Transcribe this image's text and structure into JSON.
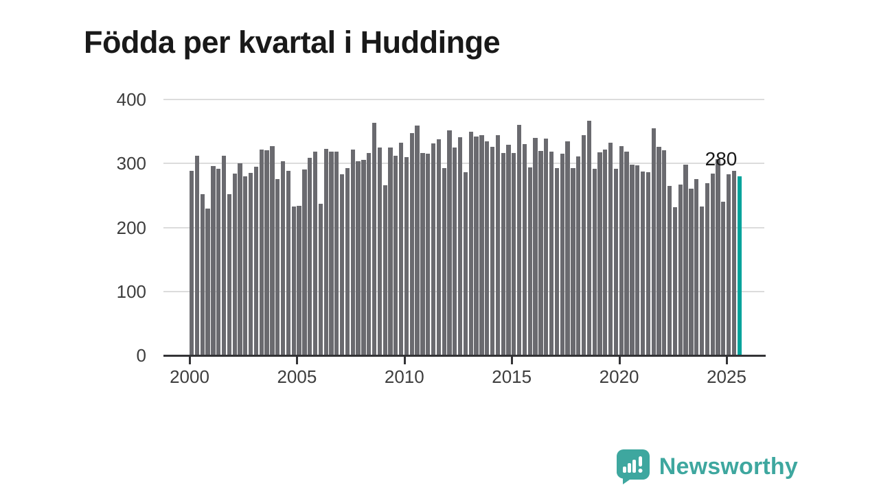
{
  "title": "Födda per kvartal i Huddinge",
  "chart_data": {
    "type": "bar",
    "title": "Födda per kvartal i Huddinge",
    "x_unit": "quarter",
    "start_quarter": "2000 Q1",
    "end_quarter": "2025 Q3",
    "x_tick_labels": [
      "2000",
      "2005",
      "2010",
      "2015",
      "2020",
      "2025"
    ],
    "y_tick_values": [
      0,
      100,
      200,
      300,
      400
    ],
    "ylim": [
      0,
      400
    ],
    "grid": true,
    "legend_position": "none",
    "values": [
      288,
      312,
      252,
      230,
      296,
      292,
      312,
      252,
      284,
      300,
      280,
      285,
      295,
      322,
      321,
      327,
      276,
      303,
      288,
      233,
      234,
      291,
      309,
      318,
      237,
      323,
      319,
      318,
      283,
      293,
      322,
      303,
      306,
      316,
      364,
      325,
      266,
      325,
      312,
      332,
      310,
      347,
      359,
      316,
      315,
      331,
      338,
      293,
      352,
      325,
      341,
      286,
      350,
      342,
      344,
      335,
      326,
      344,
      316,
      329,
      316,
      360,
      330,
      294,
      340,
      320,
      339,
      318,
      293,
      315,
      335,
      293,
      311,
      344,
      367,
      292,
      317,
      322,
      332,
      292,
      327,
      319,
      298,
      297,
      287,
      286,
      355,
      326,
      321,
      265,
      232,
      267,
      298,
      261,
      276,
      233,
      269,
      284,
      307,
      240,
      283,
      289,
      280
    ],
    "highlight_index": 102,
    "highlight_label": "280",
    "highlight_quarter": "2025 Q3",
    "bar_color": "#6a6a6f",
    "highlight_color": "#00a39b",
    "gridline_color": "#dcdcdc",
    "axis_color": "#333336"
  },
  "branding": {
    "logo_text": "Newsworthy",
    "logo_color": "#3ea79f",
    "logo_icon": "bar-chart-speech-bubble-icon"
  }
}
